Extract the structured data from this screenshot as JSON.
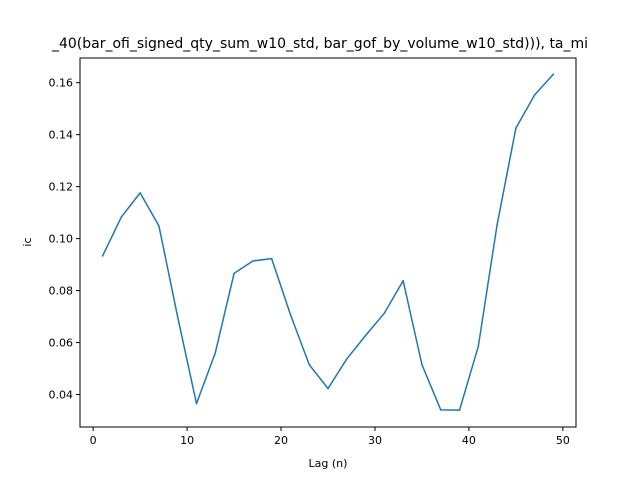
{
  "chart_data": {
    "type": "line",
    "title": "_40(bar_ofi_signed_qty_sum_w10_std, bar_gof_by_volume_w10_std))), ta_mi",
    "xlabel": "Lag (n)",
    "ylabel": "ic",
    "xlim": [
      -1.4,
      51.4
    ],
    "ylim": [
      0.0275,
      0.1695
    ],
    "xticks": [
      0,
      10,
      20,
      30,
      40,
      50
    ],
    "yticks": [
      0.04,
      0.06,
      0.08,
      0.1,
      0.12,
      0.14,
      0.16
    ],
    "xtick_labels": [
      "0",
      "10",
      "20",
      "30",
      "40",
      "50"
    ],
    "ytick_labels": [
      "0.04",
      "0.06",
      "0.08",
      "0.10",
      "0.12",
      "0.14",
      "0.16"
    ],
    "grid": false,
    "series": [
      {
        "color": "#1f77b4",
        "x": [
          1,
          3,
          5,
          7,
          9,
          11,
          13,
          15,
          17,
          19,
          21,
          23,
          25,
          27,
          29,
          31,
          33,
          35,
          37,
          39,
          41,
          43,
          45,
          47,
          49
        ],
        "values": [
          0.0933,
          0.1083,
          0.1176,
          0.1049,
          0.0698,
          0.0365,
          0.056,
          0.0866,
          0.0914,
          0.0923,
          0.0708,
          0.0515,
          0.0423,
          0.0537,
          0.0627,
          0.0713,
          0.0838,
          0.0515,
          0.0341,
          0.034,
          0.0585,
          0.1053,
          0.1425,
          0.1553,
          0.1633
        ]
      }
    ]
  }
}
